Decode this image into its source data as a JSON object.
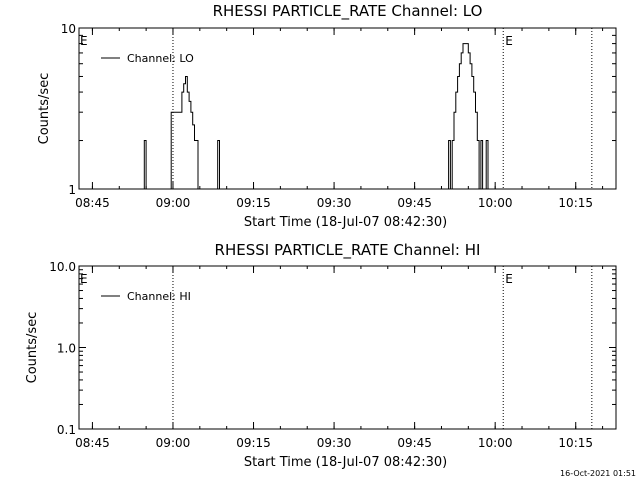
{
  "footer": {
    "timestamp": "16-Oct-2021 01:51"
  },
  "chart_data": [
    {
      "type": "line",
      "title": "RHESSI PARTICLE_RATE Channel: LO",
      "xlabel": "Start Time (18-Jul-07 08:42:30)",
      "ylabel": "Counts/sec",
      "yscale": "log",
      "ylim": [
        1,
        10
      ],
      "ytick_labels": [
        "1",
        "10"
      ],
      "xlim_minutes": [
        0,
        100
      ],
      "xtick_labels": [
        "08:45",
        "09:00",
        "09:15",
        "09:30",
        "09:45",
        "10:00",
        "10:15"
      ],
      "legend": {
        "position": "top-left",
        "entries": [
          "Channel: LO"
        ]
      },
      "markers": [
        {
          "label": "",
          "time": "09:00:00"
        },
        {
          "label": "E",
          "time": "10:01:30"
        },
        {
          "label": "",
          "time": "10:18:00"
        }
      ],
      "edge_label": "E",
      "series": [
        {
          "name": "Channel: LO",
          "x": [
            "08:42:30",
            "08:54:00",
            "08:54:40",
            "08:55:00",
            "08:59:20",
            "08:59:40",
            "09:00:00",
            "09:01:20",
            "09:01:40",
            "09:02:00",
            "09:02:20",
            "09:02:40",
            "09:03:00",
            "09:03:20",
            "09:03:40",
            "09:04:00",
            "09:04:40",
            "09:05:00",
            "09:08:00",
            "09:08:20",
            "09:08:40",
            "09:51:00",
            "09:51:20",
            "09:51:40",
            "09:52:00",
            "09:52:20",
            "09:52:40",
            "09:53:00",
            "09:53:20",
            "09:53:40",
            "09:54:00",
            "09:54:20",
            "09:54:40",
            "09:55:00",
            "09:55:20",
            "09:55:40",
            "09:56:00",
            "09:56:20",
            "09:56:40",
            "09:57:00",
            "09:57:20",
            "09:57:40",
            "09:58:00",
            "09:58:20",
            "09:58:40",
            "09:59:00",
            "09:59:20",
            "09:59:40",
            "10:00:00",
            "10:00:40"
          ],
          "y": [
            1,
            1,
            2,
            1,
            1,
            3,
            3,
            3,
            4,
            4.5,
            5,
            4,
            3.5,
            3,
            2.5,
            2,
            1,
            1,
            1,
            2,
            1,
            1,
            2,
            1,
            2,
            3,
            4,
            5,
            6,
            7,
            8,
            8,
            8,
            7,
            6,
            5,
            4,
            3,
            2,
            1,
            2,
            1,
            1,
            2,
            1,
            1,
            1,
            1,
            1,
            1
          ]
        }
      ]
    },
    {
      "type": "line",
      "title": "RHESSI PARTICLE_RATE Channel: HI",
      "xlabel": "Start Time (18-Jul-07 08:42:30)",
      "ylabel": "Counts/sec",
      "yscale": "log",
      "ylim": [
        0.1,
        10
      ],
      "ytick_labels": [
        "0.1",
        "1.0",
        "10.0"
      ],
      "xlim_minutes": [
        0,
        100
      ],
      "xtick_labels": [
        "08:45",
        "09:00",
        "09:15",
        "09:30",
        "09:45",
        "10:00",
        "10:15"
      ],
      "legend": {
        "position": "top-left",
        "entries": [
          "Channel: HI"
        ]
      },
      "markers": [
        {
          "label": "",
          "time": "09:00:00"
        },
        {
          "label": "E",
          "time": "10:01:30"
        },
        {
          "label": "",
          "time": "10:18:00"
        }
      ],
      "edge_label": "E",
      "series": [
        {
          "name": "Channel: HI",
          "x": [],
          "y": []
        }
      ]
    }
  ]
}
